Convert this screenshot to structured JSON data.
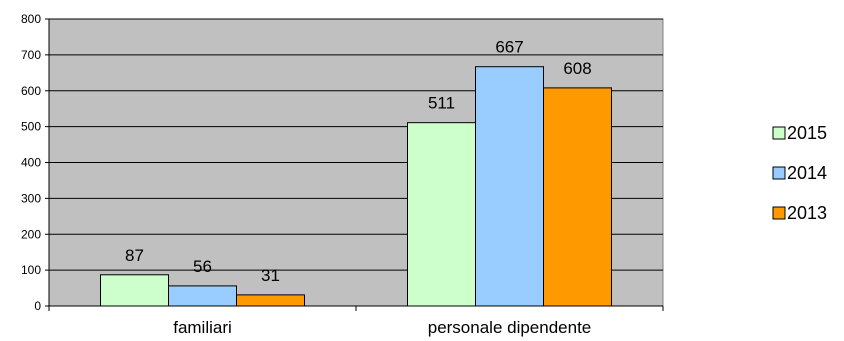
{
  "chart_data": {
    "type": "bar",
    "categories": [
      "familiari",
      "personale dipendente"
    ],
    "series": [
      {
        "name": "2015",
        "values": [
          87,
          511
        ],
        "color": "#ccffcc"
      },
      {
        "name": "2014",
        "values": [
          56,
          667
        ],
        "color": "#99ccff"
      },
      {
        "name": "2013",
        "values": [
          31,
          608
        ],
        "color": "#ff9900"
      }
    ],
    "ylim": [
      0,
      800
    ],
    "yticks": [
      0,
      100,
      200,
      300,
      400,
      500,
      600,
      700,
      800
    ],
    "grid": true,
    "plot_background": "#c0c0c0",
    "legend_position": "right",
    "title": "",
    "xlabel": "",
    "ylabel": ""
  }
}
